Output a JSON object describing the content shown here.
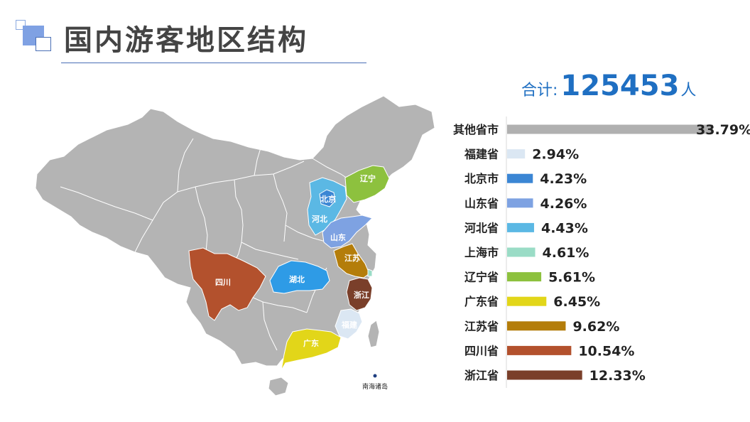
{
  "title": "国内游客地区结构",
  "total": {
    "label": "合计:",
    "value": "125453",
    "unit": "人"
  },
  "map_labels": {
    "liaoning": "辽宁",
    "beijing": "北京",
    "hebei": "河北",
    "shandong": "山东",
    "jiangsu": "江苏",
    "sichuan": "四川",
    "hubei": "湖北",
    "zhejiang": "浙江",
    "fujian": "福建",
    "guangdong": "广东",
    "south_sea": "南海诸岛"
  },
  "colors": {
    "base_map": "#b4b4b4",
    "accent": "#1f6fc2"
  },
  "chart_data": {
    "type": "bar",
    "orientation": "horizontal",
    "categories": [
      "其他省市",
      "福建省",
      "北京市",
      "山东省",
      "河北省",
      "上海市",
      "辽宁省",
      "广东省",
      "江苏省",
      "四川省",
      "浙江省"
    ],
    "values": [
      33.79,
      2.94,
      4.23,
      4.26,
      4.43,
      4.61,
      5.61,
      6.45,
      9.62,
      10.54,
      12.33
    ],
    "value_labels": [
      "33.79%",
      "2.94%",
      "4.23%",
      "4.26%",
      "4.43%",
      "4.61%",
      "5.61%",
      "6.45%",
      "9.62%",
      "10.54%",
      "12.33%"
    ],
    "colors": [
      "#b0b0b0",
      "#dbe7f3",
      "#3b86d4",
      "#7ea2e2",
      "#5bb8e4",
      "#9adcc6",
      "#8dc13e",
      "#e2d619",
      "#b47d0a",
      "#b3512d",
      "#7a3f2a"
    ],
    "xlim": [
      0,
      35
    ],
    "unit": "%"
  }
}
